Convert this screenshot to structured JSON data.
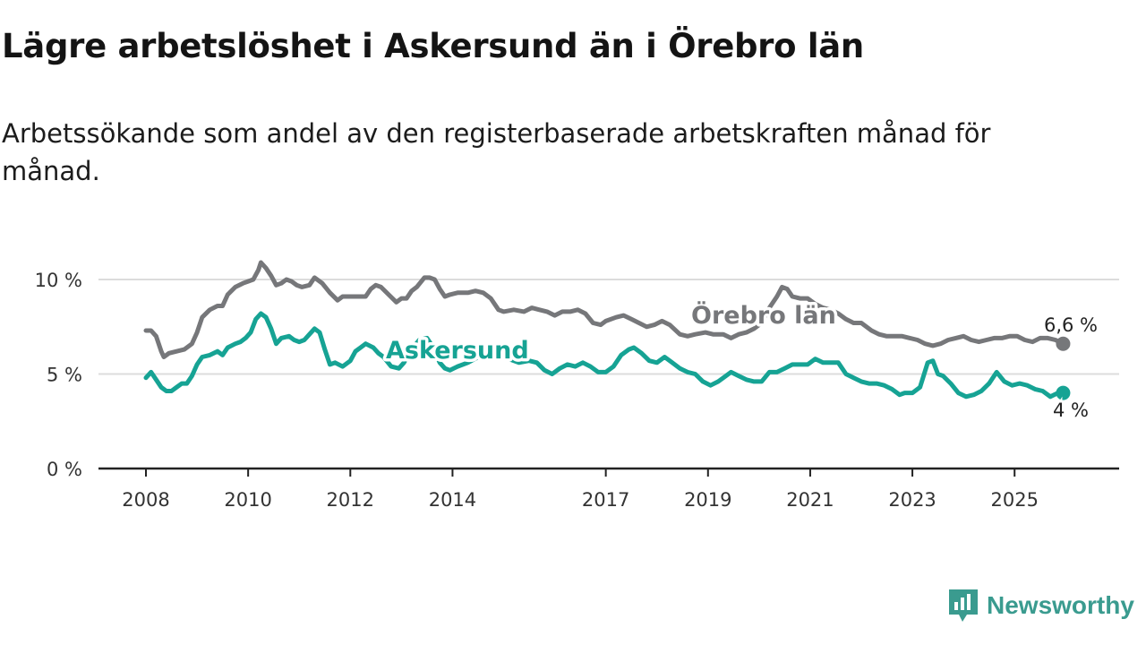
{
  "title": "Lägre arbetslöshet i Askersund än i Örebro län",
  "subtitle": "Arbetssökande som andel av den registerbaserade arbetskraften månad för månad.",
  "brand": "Newsworthy",
  "chart_data": {
    "type": "line",
    "title": "Lägre arbetslöshet i Askersund än i Örebro län",
    "xlabel": "",
    "ylabel": "",
    "xlim": [
      2008.0,
      2026.1
    ],
    "ylim": [
      0,
      10
    ],
    "y_ticks": [
      {
        "value": 0,
        "label": "0 %"
      },
      {
        "value": 5,
        "label": "5 %"
      },
      {
        "value": 10,
        "label": "10 %"
      }
    ],
    "x_ticks": [
      {
        "value": 2008,
        "label": "2008"
      },
      {
        "value": 2010,
        "label": "2010"
      },
      {
        "value": 2012,
        "label": "2012"
      },
      {
        "value": 2014,
        "label": "2014"
      },
      {
        "value": 2017,
        "label": "2017"
      },
      {
        "value": 2019,
        "label": "2019"
      },
      {
        "value": 2021,
        "label": "2021"
      },
      {
        "value": 2023,
        "label": "2023"
      },
      {
        "value": 2025,
        "label": "2025"
      }
    ],
    "grid": true,
    "series": [
      {
        "name": "Örebro län",
        "color": "#76777a",
        "end_label": "6,6 %",
        "points": [
          [
            2008.0,
            7.3
          ],
          [
            2008.1,
            7.3
          ],
          [
            2008.2,
            7.0
          ],
          [
            2008.3,
            6.2
          ],
          [
            2008.35,
            5.9
          ],
          [
            2008.45,
            6.1
          ],
          [
            2008.6,
            6.2
          ],
          [
            2008.75,
            6.3
          ],
          [
            2008.9,
            6.6
          ],
          [
            2009.0,
            7.2
          ],
          [
            2009.1,
            8.0
          ],
          [
            2009.25,
            8.4
          ],
          [
            2009.4,
            8.6
          ],
          [
            2009.5,
            8.6
          ],
          [
            2009.6,
            9.2
          ],
          [
            2009.75,
            9.6
          ],
          [
            2009.9,
            9.8
          ],
          [
            2010.0,
            9.9
          ],
          [
            2010.1,
            10.0
          ],
          [
            2010.2,
            10.5
          ],
          [
            2010.25,
            10.9
          ],
          [
            2010.35,
            10.6
          ],
          [
            2010.45,
            10.2
          ],
          [
            2010.55,
            9.7
          ],
          [
            2010.65,
            9.8
          ],
          [
            2010.75,
            10.0
          ],
          [
            2010.85,
            9.9
          ],
          [
            2010.95,
            9.7
          ],
          [
            2011.05,
            9.6
          ],
          [
            2011.2,
            9.7
          ],
          [
            2011.3,
            10.1
          ],
          [
            2011.45,
            9.8
          ],
          [
            2011.6,
            9.3
          ],
          [
            2011.75,
            8.9
          ],
          [
            2011.85,
            9.1
          ],
          [
            2012.0,
            9.1
          ],
          [
            2012.15,
            9.1
          ],
          [
            2012.3,
            9.1
          ],
          [
            2012.4,
            9.5
          ],
          [
            2012.5,
            9.7
          ],
          [
            2012.6,
            9.6
          ],
          [
            2012.75,
            9.2
          ],
          [
            2012.9,
            8.8
          ],
          [
            2013.0,
            9.0
          ],
          [
            2013.1,
            9.0
          ],
          [
            2013.2,
            9.4
          ],
          [
            2013.3,
            9.6
          ],
          [
            2013.45,
            10.1
          ],
          [
            2013.55,
            10.1
          ],
          [
            2013.65,
            10.0
          ],
          [
            2013.75,
            9.5
          ],
          [
            2013.85,
            9.1
          ],
          [
            2013.95,
            9.2
          ],
          [
            2014.1,
            9.3
          ],
          [
            2014.3,
            9.3
          ],
          [
            2014.45,
            9.4
          ],
          [
            2014.6,
            9.3
          ],
          [
            2014.75,
            9.0
          ],
          [
            2014.9,
            8.4
          ],
          [
            2015.0,
            8.3
          ],
          [
            2015.2,
            8.4
          ],
          [
            2015.4,
            8.3
          ],
          [
            2015.55,
            8.5
          ],
          [
            2015.7,
            8.4
          ],
          [
            2015.85,
            8.3
          ],
          [
            2016.0,
            8.1
          ],
          [
            2016.15,
            8.3
          ],
          [
            2016.3,
            8.3
          ],
          [
            2016.45,
            8.4
          ],
          [
            2016.6,
            8.2
          ],
          [
            2016.75,
            7.7
          ],
          [
            2016.9,
            7.6
          ],
          [
            2017.0,
            7.8
          ],
          [
            2017.2,
            8.0
          ],
          [
            2017.35,
            8.1
          ],
          [
            2017.5,
            7.9
          ],
          [
            2017.65,
            7.7
          ],
          [
            2017.8,
            7.5
          ],
          [
            2017.95,
            7.6
          ],
          [
            2018.1,
            7.8
          ],
          [
            2018.25,
            7.6
          ],
          [
            2018.45,
            7.1
          ],
          [
            2018.6,
            7.0
          ],
          [
            2018.75,
            7.1
          ],
          [
            2018.95,
            7.2
          ],
          [
            2019.1,
            7.1
          ],
          [
            2019.3,
            7.1
          ],
          [
            2019.45,
            6.9
          ],
          [
            2019.6,
            7.1
          ],
          [
            2019.75,
            7.2
          ],
          [
            2019.9,
            7.4
          ],
          [
            2020.05,
            7.7
          ],
          [
            2020.2,
            8.5
          ],
          [
            2020.35,
            9.1
          ],
          [
            2020.45,
            9.6
          ],
          [
            2020.55,
            9.5
          ],
          [
            2020.65,
            9.1
          ],
          [
            2020.8,
            9.0
          ],
          [
            2020.95,
            9.0
          ],
          [
            2021.1,
            8.7
          ],
          [
            2021.25,
            8.5
          ],
          [
            2021.4,
            8.4
          ],
          [
            2021.55,
            8.2
          ],
          [
            2021.7,
            7.9
          ],
          [
            2021.85,
            7.7
          ],
          [
            2022.0,
            7.7
          ],
          [
            2022.2,
            7.3
          ],
          [
            2022.35,
            7.1
          ],
          [
            2022.5,
            7.0
          ],
          [
            2022.65,
            7.0
          ],
          [
            2022.8,
            7.0
          ],
          [
            2022.95,
            6.9
          ],
          [
            2023.1,
            6.8
          ],
          [
            2023.25,
            6.6
          ],
          [
            2023.4,
            6.5
          ],
          [
            2023.55,
            6.6
          ],
          [
            2023.7,
            6.8
          ],
          [
            2023.85,
            6.9
          ],
          [
            2024.0,
            7.0
          ],
          [
            2024.15,
            6.8
          ],
          [
            2024.3,
            6.7
          ],
          [
            2024.45,
            6.8
          ],
          [
            2024.6,
            6.9
          ],
          [
            2024.75,
            6.9
          ],
          [
            2024.9,
            7.0
          ],
          [
            2025.05,
            7.0
          ],
          [
            2025.2,
            6.8
          ],
          [
            2025.35,
            6.7
          ],
          [
            2025.5,
            6.9
          ],
          [
            2025.65,
            6.9
          ],
          [
            2025.8,
            6.8
          ],
          [
            2025.95,
            6.6
          ]
        ]
      },
      {
        "name": "Askersund",
        "color": "#16a394",
        "end_label": "4 %",
        "points": [
          [
            2008.0,
            4.8
          ],
          [
            2008.1,
            5.1
          ],
          [
            2008.2,
            4.7
          ],
          [
            2008.3,
            4.3
          ],
          [
            2008.4,
            4.1
          ],
          [
            2008.5,
            4.1
          ],
          [
            2008.6,
            4.3
          ],
          [
            2008.7,
            4.5
          ],
          [
            2008.8,
            4.5
          ],
          [
            2008.9,
            4.9
          ],
          [
            2009.0,
            5.5
          ],
          [
            2009.1,
            5.9
          ],
          [
            2009.25,
            6.0
          ],
          [
            2009.4,
            6.2
          ],
          [
            2009.5,
            6.0
          ],
          [
            2009.6,
            6.4
          ],
          [
            2009.75,
            6.6
          ],
          [
            2009.85,
            6.7
          ],
          [
            2009.95,
            6.9
          ],
          [
            2010.05,
            7.2
          ],
          [
            2010.15,
            7.9
          ],
          [
            2010.25,
            8.2
          ],
          [
            2010.35,
            8.0
          ],
          [
            2010.45,
            7.4
          ],
          [
            2010.55,
            6.6
          ],
          [
            2010.65,
            6.9
          ],
          [
            2010.8,
            7.0
          ],
          [
            2010.9,
            6.8
          ],
          [
            2011.0,
            6.7
          ],
          [
            2011.1,
            6.8
          ],
          [
            2011.2,
            7.1
          ],
          [
            2011.3,
            7.4
          ],
          [
            2011.4,
            7.2
          ],
          [
            2011.5,
            6.3
          ],
          [
            2011.6,
            5.5
          ],
          [
            2011.7,
            5.6
          ],
          [
            2011.85,
            5.4
          ],
          [
            2012.0,
            5.7
          ],
          [
            2012.1,
            6.2
          ],
          [
            2012.2,
            6.4
          ],
          [
            2012.3,
            6.6
          ],
          [
            2012.45,
            6.4
          ],
          [
            2012.55,
            6.1
          ],
          [
            2012.65,
            5.9
          ],
          [
            2012.8,
            5.4
          ],
          [
            2012.95,
            5.3
          ],
          [
            2013.05,
            5.6
          ],
          [
            2013.2,
            6.3
          ],
          [
            2013.35,
            6.8
          ],
          [
            2013.5,
            6.9
          ],
          [
            2013.6,
            6.5
          ],
          [
            2013.75,
            5.6
          ],
          [
            2013.85,
            5.3
          ],
          [
            2013.95,
            5.2
          ],
          [
            2014.1,
            5.4
          ],
          [
            2014.3,
            5.6
          ],
          [
            2014.5,
            5.9
          ],
          [
            2014.7,
            5.8
          ],
          [
            2014.9,
            5.9
          ],
          [
            2015.1,
            5.8
          ],
          [
            2015.3,
            5.6
          ],
          [
            2015.5,
            5.7
          ],
          [
            2015.65,
            5.6
          ],
          [
            2015.8,
            5.2
          ],
          [
            2015.95,
            5.0
          ],
          [
            2016.1,
            5.3
          ],
          [
            2016.25,
            5.5
          ],
          [
            2016.4,
            5.4
          ],
          [
            2016.55,
            5.6
          ],
          [
            2016.7,
            5.4
          ],
          [
            2016.85,
            5.1
          ],
          [
            2017.0,
            5.1
          ],
          [
            2017.15,
            5.4
          ],
          [
            2017.3,
            6.0
          ],
          [
            2017.45,
            6.3
          ],
          [
            2017.55,
            6.4
          ],
          [
            2017.7,
            6.1
          ],
          [
            2017.85,
            5.7
          ],
          [
            2018.0,
            5.6
          ],
          [
            2018.15,
            5.9
          ],
          [
            2018.3,
            5.6
          ],
          [
            2018.45,
            5.3
          ],
          [
            2018.6,
            5.1
          ],
          [
            2018.75,
            5.0
          ],
          [
            2018.9,
            4.6
          ],
          [
            2019.05,
            4.4
          ],
          [
            2019.2,
            4.6
          ],
          [
            2019.35,
            4.9
          ],
          [
            2019.45,
            5.1
          ],
          [
            2019.6,
            4.9
          ],
          [
            2019.75,
            4.7
          ],
          [
            2019.9,
            4.6
          ],
          [
            2020.05,
            4.6
          ],
          [
            2020.2,
            5.1
          ],
          [
            2020.35,
            5.1
          ],
          [
            2020.5,
            5.3
          ],
          [
            2020.65,
            5.5
          ],
          [
            2020.8,
            5.5
          ],
          [
            2020.95,
            5.5
          ],
          [
            2021.1,
            5.8
          ],
          [
            2021.25,
            5.6
          ],
          [
            2021.4,
            5.6
          ],
          [
            2021.55,
            5.6
          ],
          [
            2021.7,
            5.0
          ],
          [
            2021.85,
            4.8
          ],
          [
            2022.0,
            4.6
          ],
          [
            2022.15,
            4.5
          ],
          [
            2022.3,
            4.5
          ],
          [
            2022.45,
            4.4
          ],
          [
            2022.6,
            4.2
          ],
          [
            2022.75,
            3.9
          ],
          [
            2022.85,
            4.0
          ],
          [
            2023.0,
            4.0
          ],
          [
            2023.15,
            4.3
          ],
          [
            2023.3,
            5.6
          ],
          [
            2023.4,
            5.7
          ],
          [
            2023.5,
            5.0
          ],
          [
            2023.6,
            4.9
          ],
          [
            2023.75,
            4.5
          ],
          [
            2023.9,
            4.0
          ],
          [
            2024.05,
            3.8
          ],
          [
            2024.2,
            3.9
          ],
          [
            2024.35,
            4.1
          ],
          [
            2024.5,
            4.5
          ],
          [
            2024.65,
            5.1
          ],
          [
            2024.8,
            4.6
          ],
          [
            2024.95,
            4.4
          ],
          [
            2025.1,
            4.5
          ],
          [
            2025.25,
            4.4
          ],
          [
            2025.4,
            4.2
          ],
          [
            2025.55,
            4.1
          ],
          [
            2025.7,
            3.8
          ],
          [
            2025.85,
            4.0
          ],
          [
            2025.95,
            4.0
          ]
        ]
      }
    ]
  }
}
